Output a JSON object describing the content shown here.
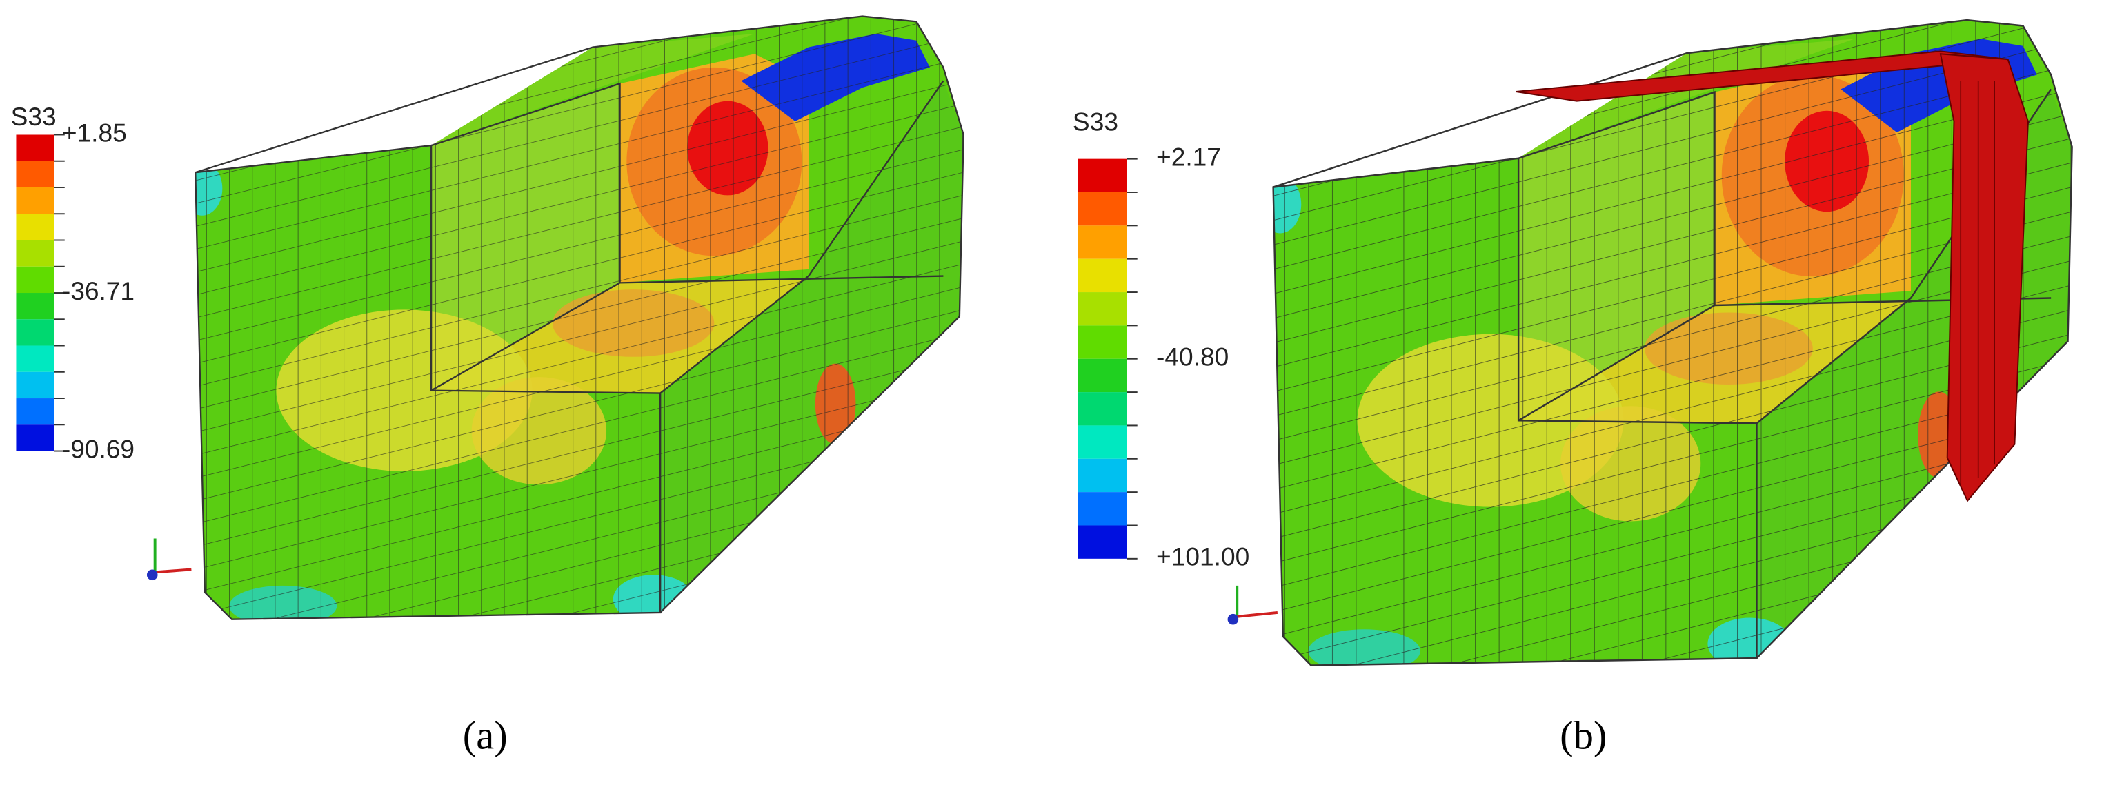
{
  "panels": [
    {
      "legend": {
        "title": "S33",
        "labels": [
          "+1.85",
          "-36.71",
          "-90.69"
        ]
      },
      "caption": "(a)"
    },
    {
      "legend": {
        "title": "S33",
        "labels": [
          "+2.17",
          "-40.80",
          "+101.00"
        ]
      },
      "caption": "(b)"
    }
  ]
}
